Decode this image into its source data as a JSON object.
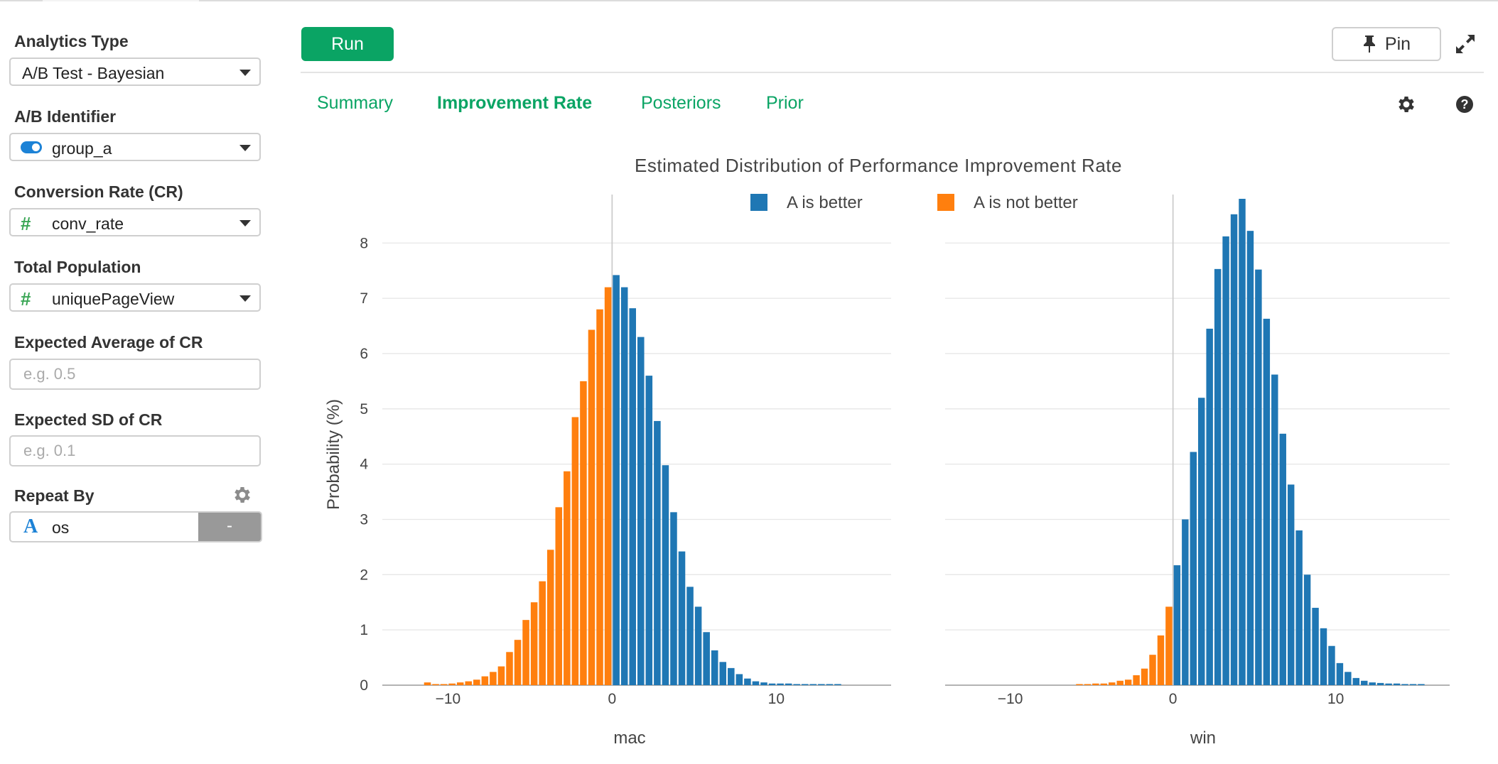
{
  "sidebar": {
    "analytics_type": {
      "label": "Analytics Type",
      "value": "A/B Test - Bayesian"
    },
    "ab_identifier": {
      "label": "A/B Identifier",
      "value": "group_a",
      "icon": "toggle-icon"
    },
    "conversion_rate": {
      "label": "Conversion Rate (CR)",
      "value": "conv_rate",
      "icon": "hash-icon"
    },
    "total_population": {
      "label": "Total Population",
      "value": "uniquePageView",
      "icon": "hash-icon"
    },
    "expected_avg": {
      "label": "Expected Average of CR",
      "placeholder": "e.g. 0.5",
      "value": ""
    },
    "expected_sd": {
      "label": "Expected SD of CR",
      "placeholder": "e.g. 0.1",
      "value": ""
    },
    "repeat_by": {
      "label": "Repeat By",
      "value": "os",
      "icon": "text-type-icon",
      "button_label": "-",
      "settings_icon": "gear-icon"
    }
  },
  "header": {
    "run_label": "Run",
    "pin_label": "Pin",
    "pin_icon": "pin-icon",
    "expand_icon": "expand-icon"
  },
  "tabs": [
    {
      "label": "Summary",
      "active": false
    },
    {
      "label": "Improvement Rate",
      "active": true
    },
    {
      "label": "Posteriors",
      "active": false
    },
    {
      "label": "Prior",
      "active": false
    }
  ],
  "toolbar_icons": [
    "gear-icon",
    "help-icon"
  ],
  "colors": {
    "accent": "#0aa464",
    "a_better": "#1f77b4",
    "a_not_better": "#ff7f0e"
  },
  "chart_data": {
    "type": "bar",
    "title": "Estimated Distribution of Performance Improvement Rate",
    "ylabel": "Probability (%)",
    "legend": [
      {
        "name": "A is better",
        "color": "#1f77b4"
      },
      {
        "name": "A is not better",
        "color": "#ff7f0e"
      }
    ],
    "legend_position": "top-center",
    "grid": true,
    "yticks": [
      0,
      1,
      2,
      3,
      4,
      5,
      6,
      7,
      8
    ],
    "ylim": [
      0,
      8.8
    ],
    "bin_width": 0.5,
    "panels": [
      {
        "name": "mac",
        "xlim": [
          -14,
          17
        ],
        "xticks": [
          -10,
          0,
          10
        ],
        "x_start": -11.5,
        "values": [
          0.05,
          0.02,
          0.02,
          0.03,
          0.05,
          0.07,
          0.1,
          0.16,
          0.24,
          0.34,
          0.6,
          0.82,
          1.18,
          1.5,
          1.88,
          2.45,
          3.22,
          3.87,
          4.85,
          5.5,
          6.43,
          6.8,
          7.2,
          7.42,
          7.2,
          6.82,
          6.3,
          5.6,
          4.78,
          3.98,
          3.13,
          2.42,
          1.78,
          1.42,
          0.96,
          0.63,
          0.42,
          0.31,
          0.2,
          0.12,
          0.07,
          0.05,
          0.03,
          0.03,
          0.03,
          0.02,
          0.02,
          0.02,
          0.02,
          0.02,
          0.02
        ],
        "series_split_x": 0
      },
      {
        "name": "win",
        "xlim": [
          -14,
          17
        ],
        "xticks": [
          -10,
          0,
          10
        ],
        "x_start": -6,
        "values": [
          0.02,
          0.02,
          0.03,
          0.03,
          0.05,
          0.08,
          0.1,
          0.18,
          0.3,
          0.55,
          0.9,
          1.42,
          2.17,
          3.0,
          4.22,
          5.2,
          6.45,
          7.53,
          8.12,
          8.52,
          8.8,
          8.22,
          7.52,
          6.63,
          5.62,
          4.55,
          3.63,
          2.8,
          2.0,
          1.4,
          1.03,
          0.71,
          0.4,
          0.24,
          0.13,
          0.08,
          0.05,
          0.04,
          0.03,
          0.03,
          0.02,
          0.02,
          0.02
        ],
        "series_split_x": 0
      }
    ]
  }
}
